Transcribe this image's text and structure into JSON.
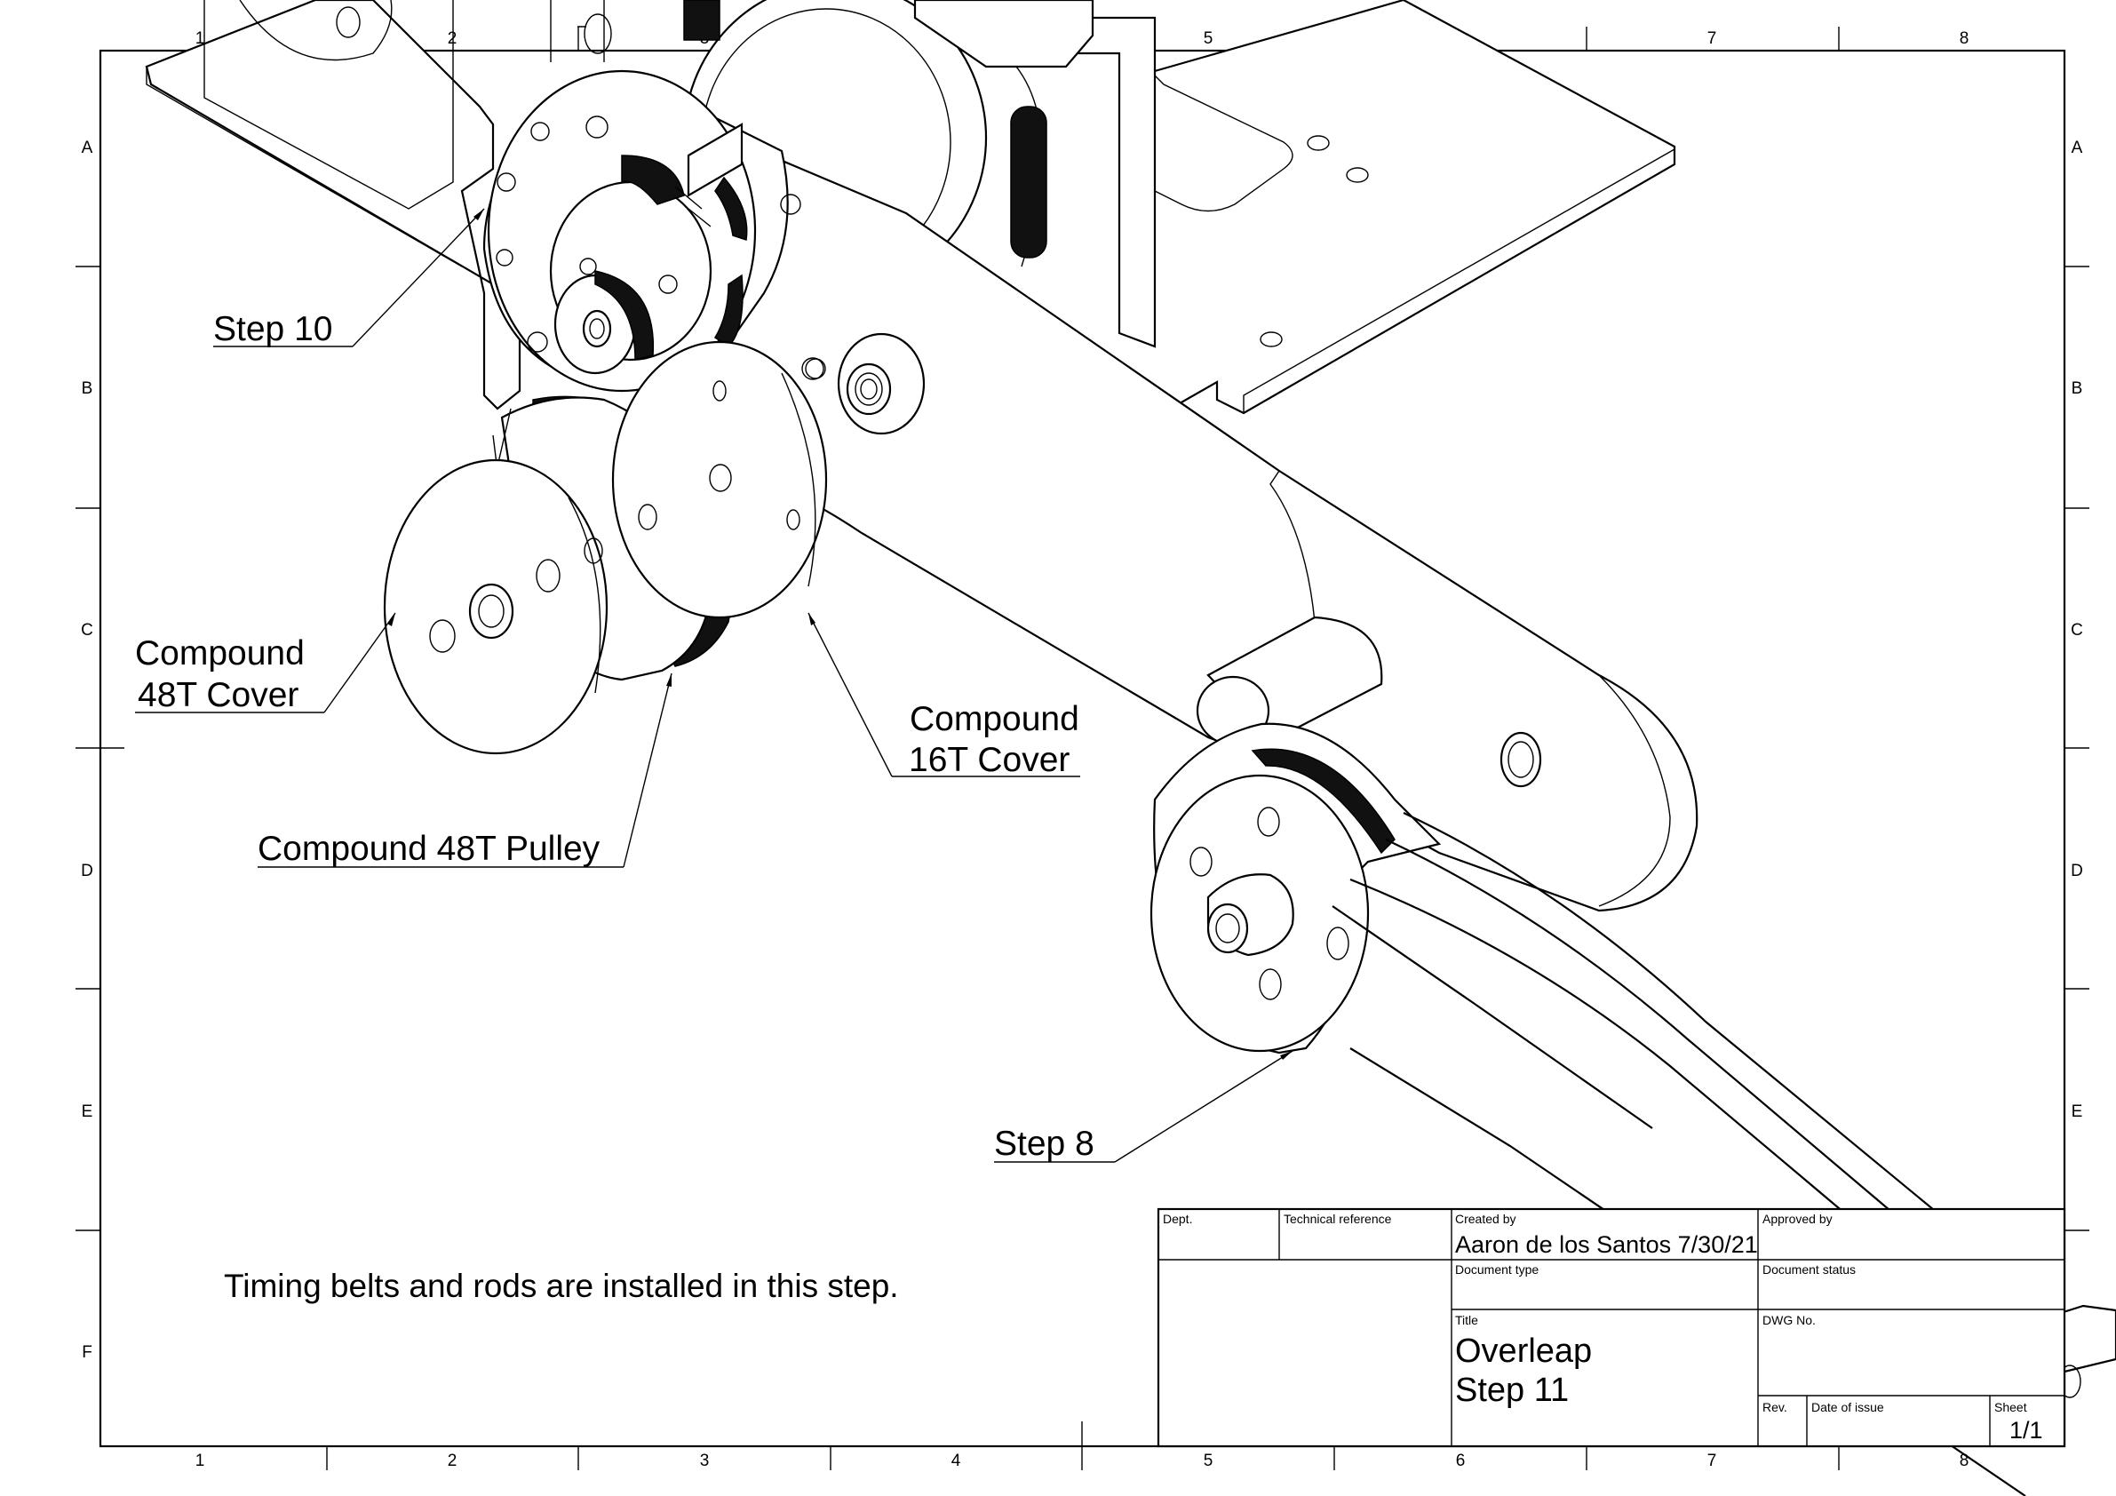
{
  "grid": {
    "columns": [
      "1",
      "2",
      "3",
      "4",
      "5",
      "6",
      "7",
      "8"
    ],
    "rows": [
      "A",
      "B",
      "C",
      "D",
      "E",
      "F"
    ]
  },
  "callouts": {
    "step10": "Step 10",
    "cover48_line1": "Compound",
    "cover48_line2": "48T Cover",
    "pulley48": "Compound 48T Pulley",
    "cover16_line1": "Compound",
    "cover16_line2": "16T Cover",
    "step8": "Step 8"
  },
  "note": "Timing belts and rods are installed in this step.",
  "title_block": {
    "dept_label": "Dept.",
    "tech_ref_label": "Technical reference",
    "created_by_label": "Created by",
    "created_by_value": "Aaron de los Santos 7/30/21",
    "approved_by_label": "Approved by",
    "doc_type_label": "Document type",
    "doc_status_label": "Document status",
    "title_label": "Title",
    "title_line1": "Overleap",
    "title_line2": "Step 11",
    "dwg_no_label": "DWG No.",
    "rev_label": "Rev.",
    "date_label": "Date of issue",
    "sheet_label": "Sheet",
    "sheet_value": "1/1"
  }
}
